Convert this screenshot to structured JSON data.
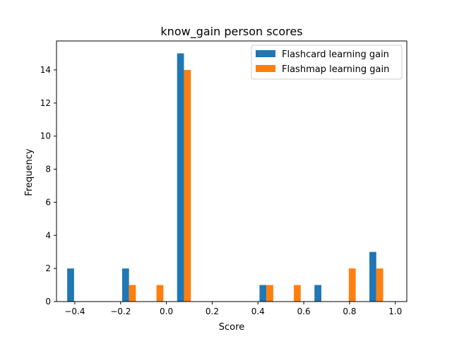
{
  "chart_data": {
    "type": "bar",
    "title": "know_gain person scores",
    "xlabel": "Score",
    "ylabel": "Frequency",
    "xlim": [
      -0.48,
      1.05
    ],
    "ylim": [
      0,
      15.75
    ],
    "x_ticks": [
      -0.4,
      -0.2,
      0.0,
      0.2,
      0.4,
      0.6,
      0.8,
      1.0
    ],
    "x_tick_labels": [
      "−0.4",
      "−0.2",
      "0.0",
      "0.2",
      "0.4",
      "0.6",
      "0.8",
      "1.0"
    ],
    "y_ticks": [
      0,
      2,
      4,
      6,
      8,
      10,
      12,
      14
    ],
    "y_tick_labels": [
      "0",
      "2",
      "4",
      "6",
      "8",
      "10",
      "12",
      "14"
    ],
    "bins": [
      [
        -0.4333,
        -0.3733
      ],
      [
        -0.3133,
        -0.2533
      ],
      [
        -0.1933,
        -0.1333
      ],
      [
        -0.0733,
        -0.0133
      ],
      [
        0.0467,
        0.1067
      ],
      [
        0.1667,
        0.2267
      ],
      [
        0.2867,
        0.3467
      ],
      [
        0.4067,
        0.4667
      ],
      [
        0.5267,
        0.5867
      ],
      [
        0.6467,
        0.7067
      ],
      [
        0.7667,
        0.8267
      ],
      [
        0.8867,
        0.9467
      ]
    ],
    "series": [
      {
        "name": "Flashcard learning gain",
        "color": "#1f77b4",
        "values": [
          2,
          0,
          2,
          0,
          15,
          0,
          0,
          1,
          0,
          1,
          0,
          3
        ]
      },
      {
        "name": "Flashmap learning gain",
        "color": "#ff7f0e",
        "values": [
          0,
          0,
          1,
          1,
          14,
          0,
          0,
          1,
          1,
          0,
          2,
          2
        ]
      }
    ],
    "legend_position": "top-right",
    "grid": false
  }
}
